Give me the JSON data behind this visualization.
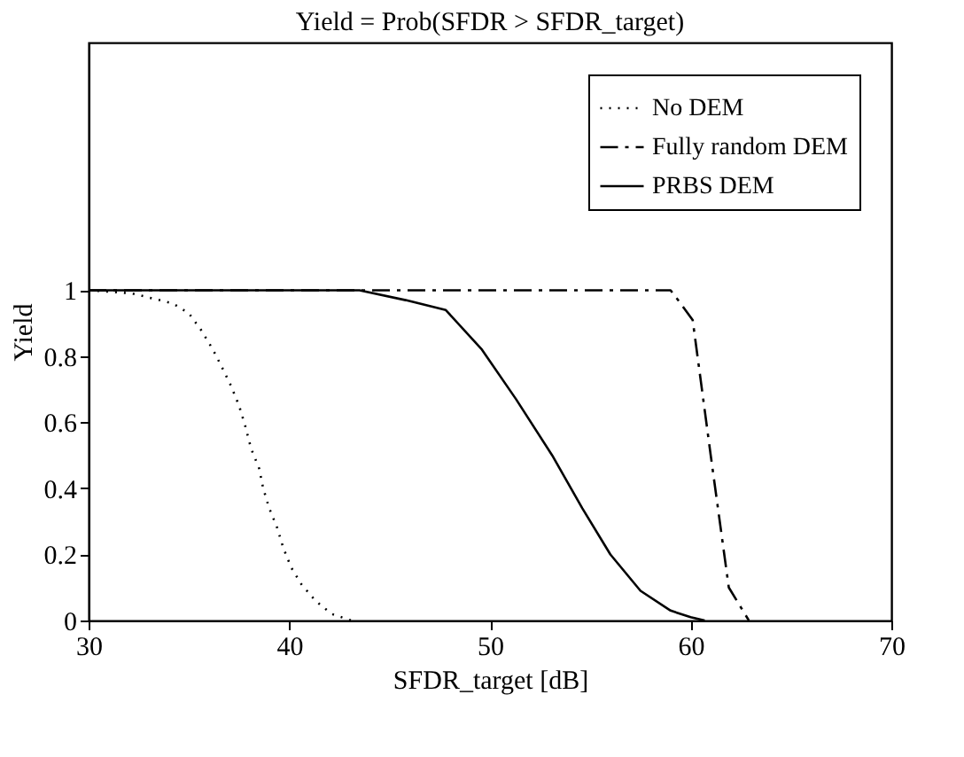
{
  "chart_data": {
    "type": "line",
    "title": "Yield = Prob(SFDR > SFDR_target)",
    "xlabel": "SFDR_target [dB]",
    "ylabel": "Yield",
    "xlim": [
      30,
      70
    ],
    "xticks": [
      30,
      40,
      50,
      60,
      70
    ],
    "ylim": [
      0,
      1.75
    ],
    "yticks": [
      0,
      0.2,
      0.4,
      0.6,
      0.8,
      1
    ],
    "grid": false,
    "legend": "top right",
    "series": [
      {
        "name": "No DEM",
        "color": "#000000",
        "line_style": "dotted",
        "x": [
          30,
          32.2,
          34.2,
          35.0,
          35.6,
          36.2,
          36.7,
          37.1,
          37.5,
          37.8,
          38.1,
          38.5,
          38.7,
          39.0,
          39.4,
          39.7,
          40.1,
          40.6,
          41.3,
          42.1,
          43.1
        ],
        "values": [
          1,
          0.99,
          0.96,
          0.93,
          0.88,
          0.82,
          0.76,
          0.71,
          0.65,
          0.59,
          0.52,
          0.46,
          0.4,
          0.34,
          0.28,
          0.22,
          0.16,
          0.11,
          0.06,
          0.02,
          0
        ]
      },
      {
        "name": "Fully random DEM",
        "color": "#000000",
        "line_style": "dashed",
        "x": [
          30,
          59.0,
          59.5,
          60.1,
          61.0,
          61.9,
          62.9
        ],
        "values": [
          1,
          1,
          0.96,
          0.91,
          0.5,
          0.1,
          0
        ]
      },
      {
        "name": "PRBS DEM",
        "color": "#000000",
        "line_style": "solid",
        "x": [
          30,
          42,
          43.5,
          45.8,
          47.8,
          49.6,
          51.3,
          53.1,
          54.6,
          56.0,
          57.5,
          59.0,
          60.0,
          60.7
        ],
        "values": [
          1,
          1,
          1,
          0.97,
          0.94,
          0.82,
          0.67,
          0.5,
          0.34,
          0.2,
          0.09,
          0.03,
          0.01,
          0
        ]
      }
    ]
  }
}
